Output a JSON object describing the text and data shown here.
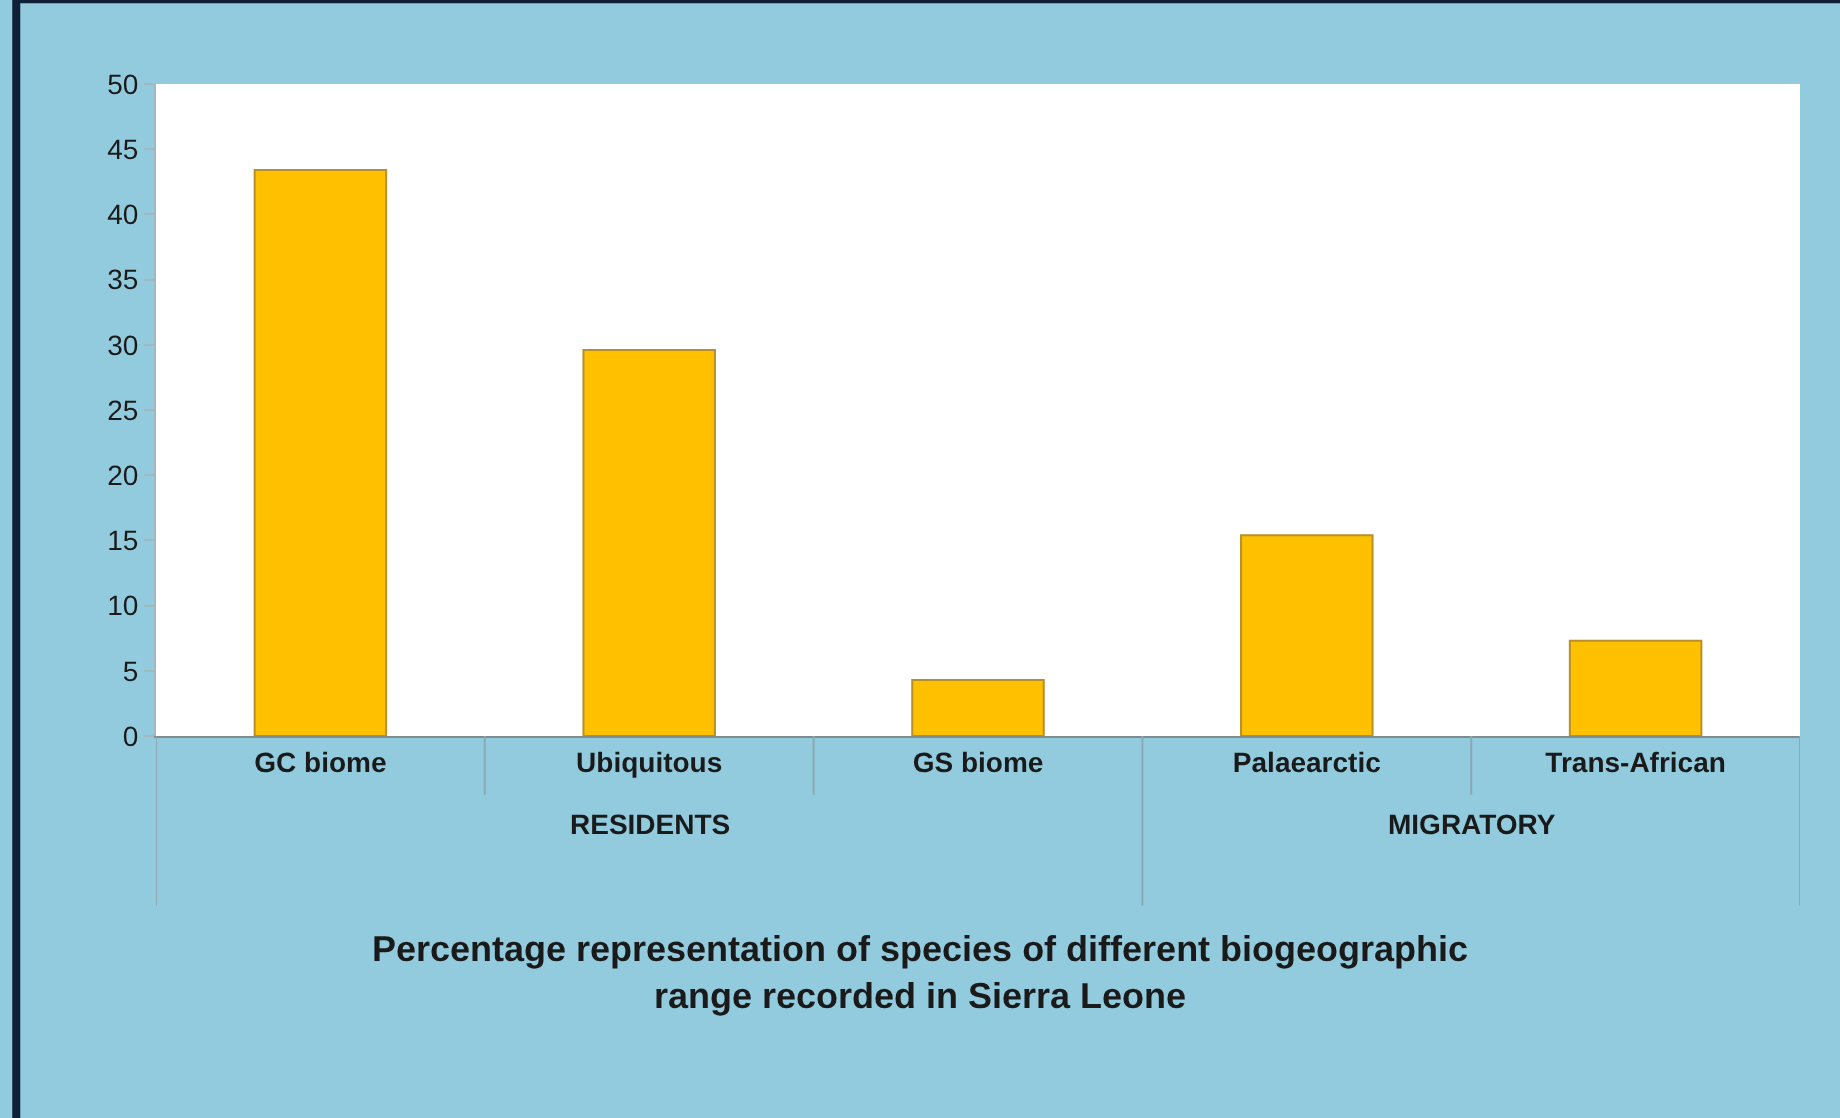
{
  "chart_data": {
    "type": "bar",
    "title": "Percentage representation of species of different biogeographic\nrange recorded in Sierra Leone",
    "categories": [
      "GC biome",
      "Ubiquitous",
      "GS biome",
      "Palaearctic",
      "Trans-African"
    ],
    "values": [
      43.4,
      29.6,
      4.3,
      15.4,
      7.3
    ],
    "color": "#ffc000",
    "ylim": [
      0,
      50
    ],
    "yticks": [
      0,
      5,
      10,
      15,
      20,
      25,
      30,
      35,
      40,
      45,
      50
    ],
    "legend": false,
    "annotations": [
      "RESIDENTS",
      "MIGRATORY"
    ]
  }
}
